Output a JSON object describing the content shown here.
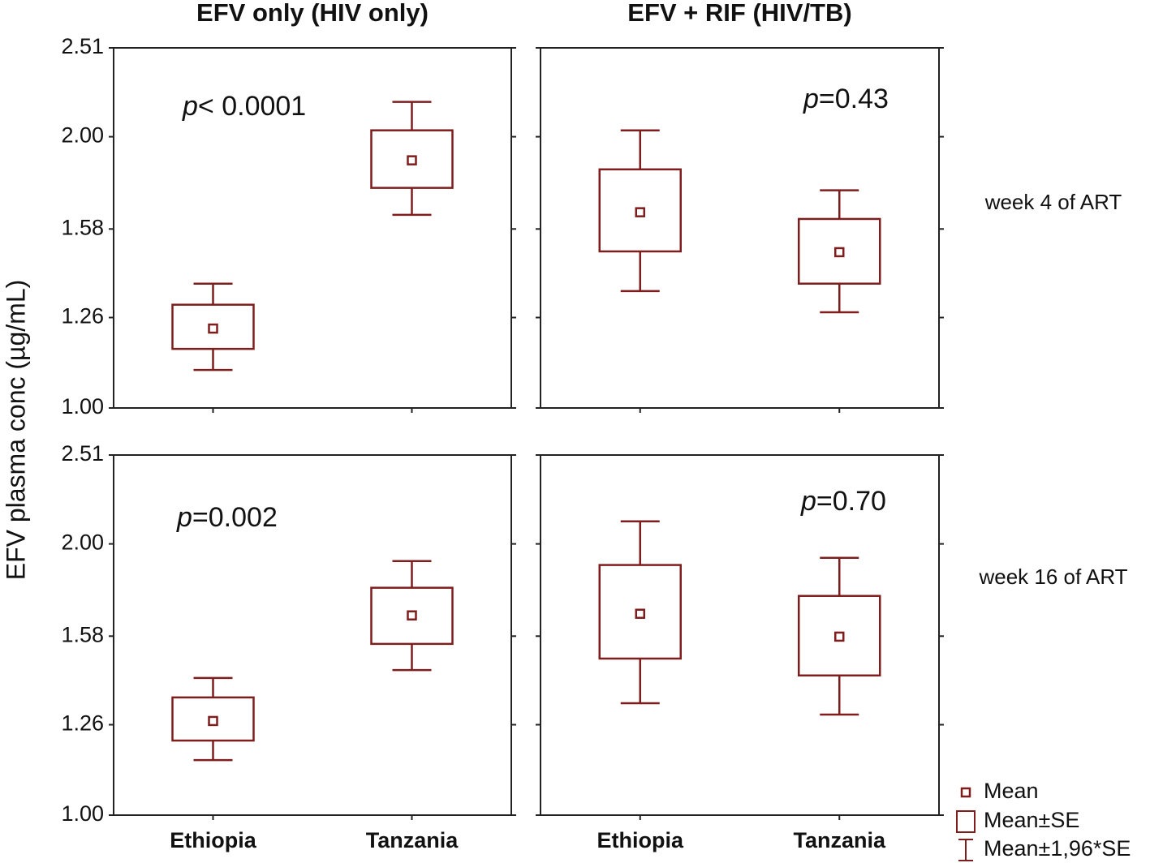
{
  "chart_data": {
    "type": "box",
    "ylabel": "EFV plasma conc (µg/mL)",
    "column_titles": [
      "EFV only (HIV only)",
      "EFV + RIF (HIV/TB)"
    ],
    "row_labels": [
      "week 4 of ART",
      "week 16 of ART"
    ],
    "categories": [
      "Ethiopia",
      "Tanzania"
    ],
    "log_scale": true,
    "color": "#7f1d1d",
    "ylim": [
      1.0,
      2.51
    ],
    "yticks": [
      {
        "value": 1.0,
        "label": "1.00"
      },
      1.26,
      1.58,
      {
        "value": 2.0,
        "label": "2.00"
      },
      2.51
    ],
    "legend": [
      "Mean",
      "Mean±SE",
      "Mean±1,96*SE"
    ],
    "panels": [
      [
        {
          "annotation": "p< 0.0001",
          "boxes": [
            {
              "mean": 1.225,
              "se_low": 1.163,
              "se_high": 1.302,
              "ci_low": 1.102,
              "ci_high": 1.374
            },
            {
              "mean": 1.883,
              "se_low": 1.755,
              "se_high": 2.033,
              "ci_low": 1.638,
              "ci_high": 2.186
            }
          ]
        },
        {
          "annotation": "p=0.43",
          "boxes": [
            {
              "mean": 1.649,
              "se_low": 1.492,
              "se_high": 1.84,
              "ci_low": 1.348,
              "ci_high": 2.033
            },
            {
              "mean": 1.489,
              "se_low": 1.374,
              "se_high": 1.621,
              "ci_low": 1.277,
              "ci_high": 1.744
            }
          ]
        }
      ],
      [
        {
          "annotation": "p=0.002",
          "boxes": [
            {
              "mean": 1.272,
              "se_low": 1.21,
              "se_high": 1.351,
              "ci_low": 1.151,
              "ci_high": 1.42
            },
            {
              "mean": 1.666,
              "se_low": 1.549,
              "se_high": 1.788,
              "ci_low": 1.449,
              "ci_high": 1.914
            }
          ]
        },
        {
          "annotation": "p=0.70",
          "boxes": [
            {
              "mean": 1.673,
              "se_low": 1.492,
              "se_high": 1.895,
              "ci_low": 1.331,
              "ci_high": 2.119
            },
            {
              "mean": 1.578,
              "se_low": 1.429,
              "se_high": 1.751,
              "ci_low": 1.293,
              "ci_high": 1.93
            }
          ]
        }
      ]
    ]
  }
}
